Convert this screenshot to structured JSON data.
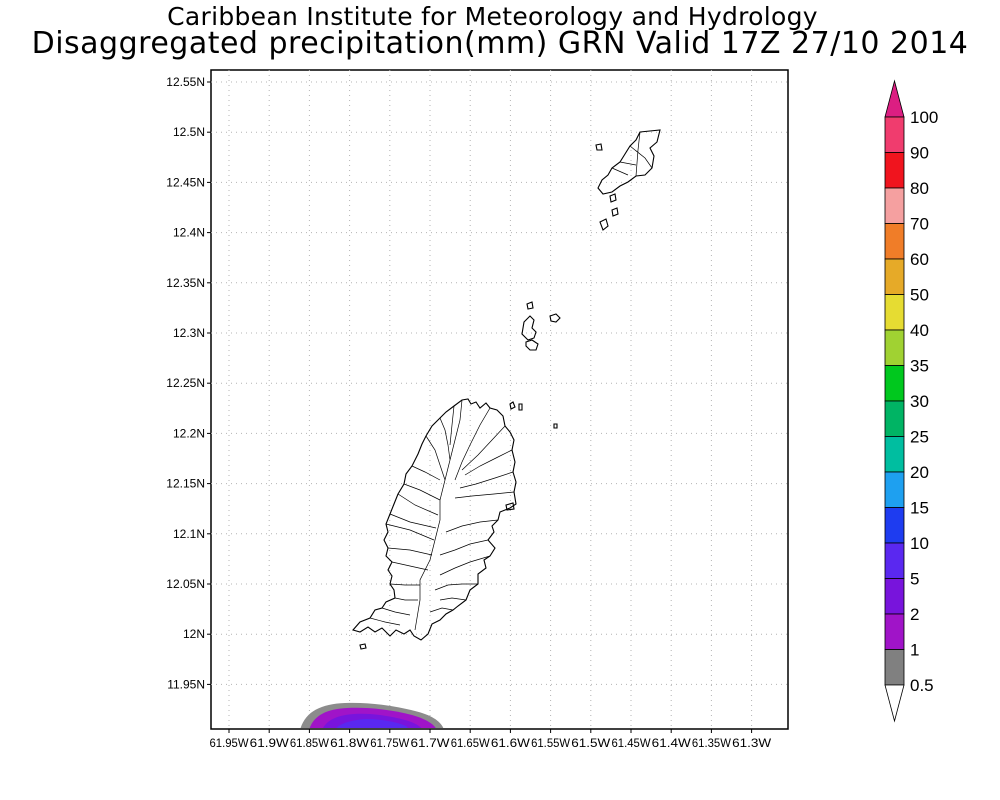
{
  "title": {
    "line1": "Caribbean Institute for Meteorology and Hydrology",
    "line2": "Disaggregated precipitation(mm) GRN Valid 17Z 27/10 2014"
  },
  "map": {
    "lat_labels": [
      "12.55N",
      "12.5N",
      "12.45N",
      "12.4N",
      "12.35N",
      "12.3N",
      "12.25N",
      "12.2N",
      "12.15N",
      "12.1N",
      "12.05N",
      "12N",
      "11.95N"
    ],
    "lon_labels": [
      "61.95W",
      "61.9W",
      "61.85W",
      "61.8W",
      "61.75W",
      "61.7W",
      "61.65W",
      "61.6W",
      "61.55W",
      "61.5W",
      "61.45W",
      "61.4W",
      "61.35W",
      "61.3W"
    ],
    "gridlines": "dotted"
  },
  "colorbar": {
    "levels": [
      "100",
      "90",
      "80",
      "70",
      "60",
      "50",
      "40",
      "35",
      "30",
      "25",
      "20",
      "15",
      "10",
      "5",
      "2",
      "1",
      "0.5"
    ],
    "colors": [
      "#f03c6e",
      "#f0141e",
      "#f5a0a0",
      "#f07d28",
      "#e6aa28",
      "#e6dc32",
      "#a0d232",
      "#00c81e",
      "#00b464",
      "#00bea0",
      "#1ea0f0",
      "#1e3cf0",
      "#5a28f0",
      "#7814dc",
      "#a014c8",
      "#808080"
    ],
    "top_triangle_color": "#dc1e82",
    "bottom_triangle_color": "#ffffff"
  }
}
